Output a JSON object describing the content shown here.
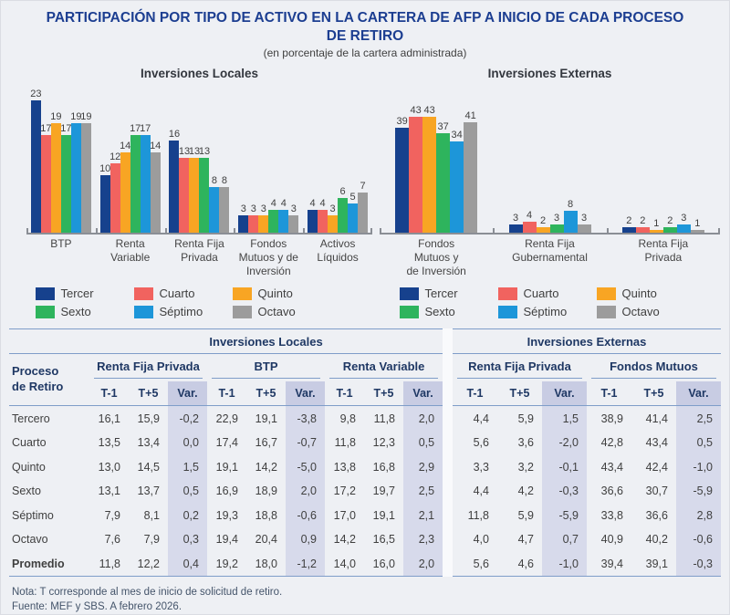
{
  "title_lines": [
    "PARTICIPACIÓN POR TIPO DE ACTIVO EN LA CARTERA DE AFP A INICIO DE CADA PROCESO",
    "DE RETIRO"
  ],
  "subtitle": "(en porcentaje de la cartera administrada)",
  "series": {
    "names": [
      "Tercer",
      "Cuarto",
      "Quinto",
      "Sexto",
      "Séptimo",
      "Octavo"
    ],
    "colors": [
      "#16418D",
      "#F1635F",
      "#F8A523",
      "#2EB45D",
      "#1D96D9",
      "#9C9C9C"
    ]
  },
  "colors": {
    "title_blue": "#1C3E91",
    "table_line_blue": "#7F9DC9",
    "var_band_header": "#C8CCE3",
    "var_band_rows": "#D7DAEB",
    "page_background": "#EEF0F4",
    "axis_gray": "#8A8E95"
  },
  "chart_data": [
    {
      "type": "bar",
      "title": "Inversiones Locales",
      "ylabel": "porcentaje de la cartera administrada",
      "grid": false,
      "legend_position": "bottom",
      "categories": [
        "BTP",
        "Renta Variable",
        "Renta Fija Privada",
        "Fondos Mutuos y de Inversión",
        "Activos Líquidos"
      ],
      "category_labels_multiline": [
        "BTP",
        "Renta\nVariable",
        "Renta Fija\nPrivada",
        "Fondos\nMutuos y de\nInversión",
        "Activos\nLíquidos"
      ],
      "series": [
        {
          "name": "Tercer",
          "values": [
            23,
            10,
            16,
            3,
            4
          ]
        },
        {
          "name": "Cuarto",
          "values": [
            17,
            12,
            13,
            3,
            4
          ]
        },
        {
          "name": "Quinto",
          "values": [
            19,
            14,
            13,
            3,
            3
          ]
        },
        {
          "name": "Sexto",
          "values": [
            17,
            17,
            13,
            4,
            6
          ]
        },
        {
          "name": "Séptimo",
          "values": [
            19,
            17,
            8,
            4,
            5
          ]
        },
        {
          "name": "Octavo",
          "values": [
            19,
            14,
            8,
            3,
            7
          ]
        }
      ]
    },
    {
      "type": "bar",
      "title": "Inversiones Externas",
      "ylabel": "porcentaje de la cartera administrada",
      "grid": false,
      "legend_position": "bottom",
      "categories": [
        "Fondos Mutuos y de Inversión",
        "Renta Fija Gubernamental",
        "Renta Fija Privada"
      ],
      "category_labels_multiline": [
        "Fondos\nMutuos y\nde Inversión",
        "Renta Fija\nGubernamental",
        "Renta Fija\nPrivada"
      ],
      "series": [
        {
          "name": "Tercer",
          "values": [
            39,
            3,
            2
          ]
        },
        {
          "name": "Cuarto",
          "values": [
            43,
            4,
            2
          ]
        },
        {
          "name": "Quinto",
          "values": [
            43,
            2,
            1
          ]
        },
        {
          "name": "Sexto",
          "values": [
            37,
            3,
            2
          ]
        },
        {
          "name": "Séptimo",
          "values": [
            34,
            8,
            3
          ]
        },
        {
          "name": "Octavo",
          "values": [
            41,
            3,
            1
          ]
        }
      ]
    }
  ],
  "table": {
    "row_header": "Proceso\nde Retiro",
    "subcols": [
      "T-1",
      "T+5",
      "Var."
    ],
    "sections": [
      {
        "title": "Inversiones Locales",
        "groups": [
          "Renta Fija Privada",
          "BTP",
          "Renta Variable"
        ]
      },
      {
        "title": "Inversiones Externas",
        "groups": [
          "Renta Fija Privada",
          "Fondos Mutuos"
        ]
      }
    ],
    "rows": [
      {
        "label": "Tercero",
        "bold": false,
        "locales": [
          "16,1",
          "15,9",
          "-0,2",
          "22,9",
          "19,1",
          "-3,8",
          "9,8",
          "11,8",
          "2,0"
        ],
        "externas": [
          "4,4",
          "5,9",
          "1,5",
          "38,9",
          "41,4",
          "2,5"
        ]
      },
      {
        "label": "Cuarto",
        "bold": false,
        "locales": [
          "13,5",
          "13,4",
          "0,0",
          "17,4",
          "16,7",
          "-0,7",
          "11,8",
          "12,3",
          "0,5"
        ],
        "externas": [
          "5,6",
          "3,6",
          "-2,0",
          "42,8",
          "43,4",
          "0,5"
        ]
      },
      {
        "label": "Quinto",
        "bold": false,
        "locales": [
          "13,0",
          "14,5",
          "1,5",
          "19,1",
          "14,2",
          "-5,0",
          "13,8",
          "16,8",
          "2,9"
        ],
        "externas": [
          "3,3",
          "3,2",
          "-0,1",
          "43,4",
          "42,4",
          "-1,0"
        ]
      },
      {
        "label": "Sexto",
        "bold": false,
        "locales": [
          "13,1",
          "13,7",
          "0,5",
          "16,9",
          "18,9",
          "2,0",
          "17,2",
          "19,7",
          "2,5"
        ],
        "externas": [
          "4,4",
          "4,2",
          "-0,3",
          "36,6",
          "30,7",
          "-5,9"
        ]
      },
      {
        "label": "Séptimo",
        "bold": false,
        "locales": [
          "7,9",
          "8,1",
          "0,2",
          "19,3",
          "18,8",
          "-0,6",
          "17,0",
          "19,1",
          "2,1"
        ],
        "externas": [
          "11,8",
          "5,9",
          "-5,9",
          "33,8",
          "36,6",
          "2,8"
        ]
      },
      {
        "label": "Octavo",
        "bold": false,
        "locales": [
          "7,6",
          "7,9",
          "0,3",
          "19,4",
          "20,4",
          "0,9",
          "14,2",
          "16,5",
          "2,3"
        ],
        "externas": [
          "4,0",
          "4,7",
          "0,7",
          "40,9",
          "40,2",
          "-0,6"
        ]
      },
      {
        "label": "Promedio",
        "bold": true,
        "locales": [
          "11,8",
          "12,2",
          "0,4",
          "19,2",
          "18,0",
          "-1,2",
          "14,0",
          "16,0",
          "2,0"
        ],
        "externas": [
          "5,6",
          "4,6",
          "-1,0",
          "39,4",
          "39,1",
          "-0,3"
        ]
      }
    ]
  },
  "notes": [
    "Nota: T corresponde al mes de inicio de solicitud de retiro.",
    "Fuente: MEF y SBS. A febrero 2026."
  ]
}
